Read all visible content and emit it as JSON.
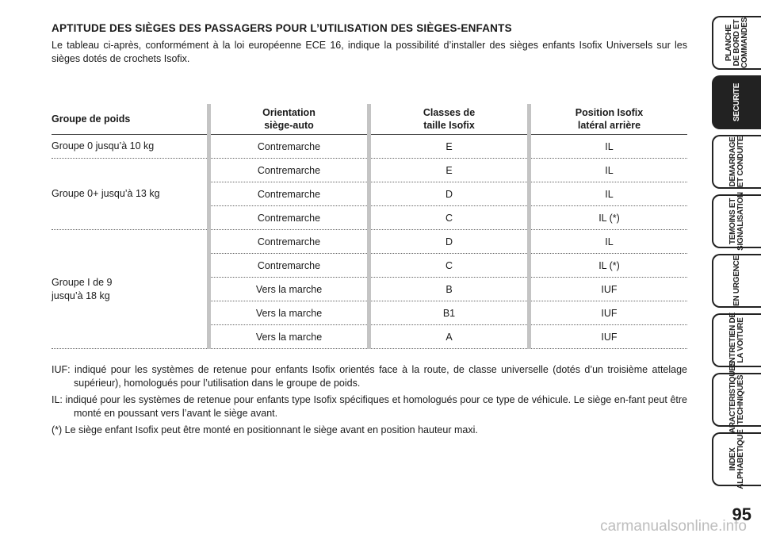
{
  "title": "APTITUDE DES SIÈGES DES PASSAGERS POUR L’UTILISATION DES SIÈGES-ENFANTS",
  "intro": "Le tableau ci-après, conformément à la loi européenne ECE 16, indique la possibilité d’installer des sièges enfants Isofix Universels sur les sièges dotés de crochets Isofix.",
  "table": {
    "headers": [
      "Groupe de poids",
      "Orientation\nsiège-auto",
      "Classes de\ntaille Isofix",
      "Position Isofix\nlatéral arrière"
    ],
    "groups": [
      {
        "label": "Groupe 0 jusqu’à 10 kg",
        "rows": [
          [
            "Contremarche",
            "E",
            "IL"
          ]
        ]
      },
      {
        "label": "Groupe 0+ jusqu’à 13 kg",
        "rows": [
          [
            "Contremarche",
            "E",
            "IL"
          ],
          [
            "Contremarche",
            "D",
            "IL"
          ],
          [
            "Contremarche",
            "C",
            "IL (*)"
          ]
        ]
      },
      {
        "label": "Groupe I de 9\njusqu’à 18 kg",
        "rows": [
          [
            "Contremarche",
            "D",
            "IL"
          ],
          [
            "Contremarche",
            "C",
            "IL (*)"
          ],
          [
            "Vers la marche",
            "B",
            "IUF"
          ],
          [
            "Vers la marche",
            "B1",
            "IUF"
          ],
          [
            "Vers la marche",
            "A",
            "IUF"
          ]
        ]
      }
    ]
  },
  "notes": {
    "iuf": "IUF: indiqué pour les systèmes de retenue pour enfants Isofix orientés face à la route, de classe universelle (dotés d’un troisième attelage supérieur), homologués pour l’utilisation dans le groupe de poids.",
    "il": "IL: indiqué pour les systèmes de retenue pour enfants type Isofix spécifiques et homologués pour ce type de véhicule. Le siège en-fant peut être monté en poussant vers l’avant le siège avant.",
    "star": "(*) Le siège enfant Isofix peut être monté en positionnant le siège avant en position hauteur maxi."
  },
  "side_tabs": [
    {
      "label": "PLANCHE\nDE BORD ET\nCOMMANDES",
      "active": false
    },
    {
      "label": "SECURITE",
      "active": true
    },
    {
      "label": "DEMARRAGE\nET CONDUITE",
      "active": false
    },
    {
      "label": "TEMOINS ET\nSIGNALISATION",
      "active": false
    },
    {
      "label": "EN URGENCE",
      "active": false
    },
    {
      "label": "ENTRETIEN DE\nLA VOITURE",
      "active": false
    },
    {
      "label": "CARACTERISTIQUES\nTECHNIQUES",
      "active": false
    },
    {
      "label": "INDEX\nALPHABETIQUE",
      "active": false
    }
  ],
  "page_number": "95",
  "watermark": "carmanualsonline.info"
}
